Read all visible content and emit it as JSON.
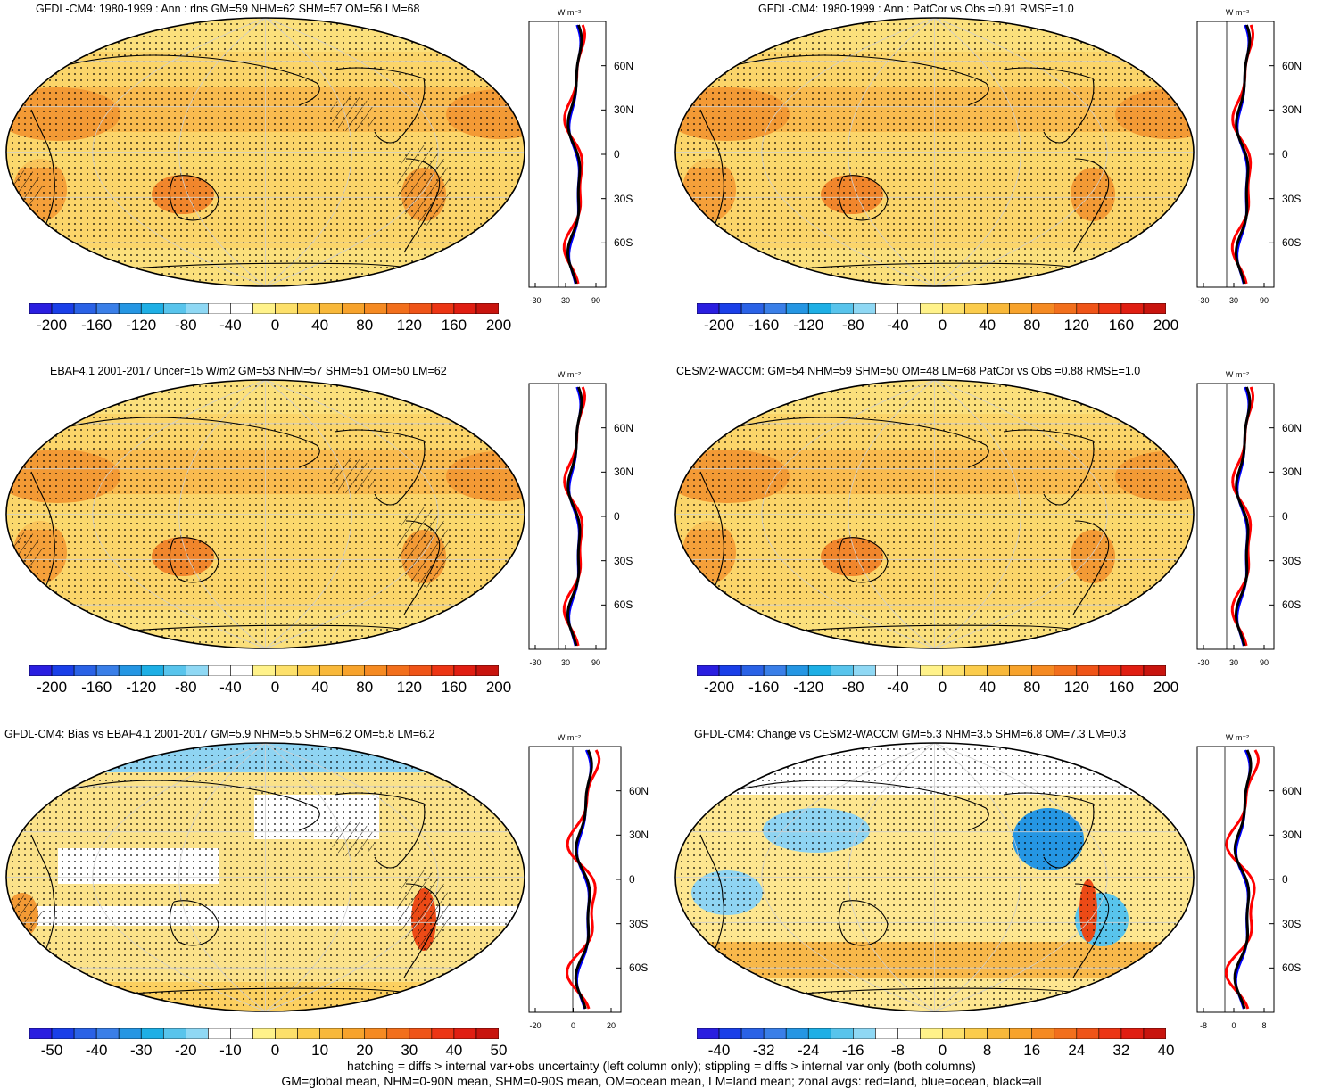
{
  "panels": [
    {
      "id": "gfdl",
      "title": "GFDL-CM4: 1980-1999 : Ann : rlns GM=59 NHM=62 SHM=57 OM=56 LM=68",
      "zonal_unit": "W m⁻²",
      "lat_ticks": [
        "60N",
        "30N",
        "0",
        "30S",
        "60S"
      ],
      "x_ticks": [
        "-30",
        "30",
        "90"
      ],
      "colorbar": {
        "labels": [
          "-200",
          "-160",
          "-120",
          "-80",
          "-40",
          "0",
          "40",
          "80",
          "120",
          "160",
          "200"
        ]
      }
    },
    {
      "id": "gfdl-patcor",
      "title": "GFDL-CM4: 1980-1999 : Ann : PatCor vs Obs =0.91 RMSE=1.0",
      "zonal_unit": "W m⁻²",
      "lat_ticks": [
        "60N",
        "30N",
        "0",
        "30S",
        "60S"
      ],
      "x_ticks": [
        "-30",
        "30",
        "90"
      ],
      "colorbar": {
        "labels": [
          "-200",
          "-160",
          "-120",
          "-80",
          "-40",
          "0",
          "40",
          "80",
          "120",
          "160",
          "200"
        ]
      }
    },
    {
      "id": "ebaf",
      "title": "EBAF4.1 2001-2017 Uncer=15 W/m2 GM=53 NHM=57 SHM=51 OM=50 LM=62",
      "zonal_unit": "W m⁻²",
      "lat_ticks": [
        "60N",
        "30N",
        "0",
        "30S",
        "60S"
      ],
      "x_ticks": [
        "-30",
        "30",
        "90"
      ],
      "colorbar": {
        "labels": [
          "-200",
          "-160",
          "-120",
          "-80",
          "-40",
          "0",
          "40",
          "80",
          "120",
          "160",
          "200"
        ]
      }
    },
    {
      "id": "cesm2",
      "title": "CESM2-WACCM: GM=54 NHM=59 SHM=50 OM=48 LM=68 PatCor vs Obs =0.88 RMSE=1.0",
      "zonal_unit": "W m⁻²",
      "lat_ticks": [
        "60N",
        "30N",
        "0",
        "30S",
        "60S"
      ],
      "x_ticks": [
        "-30",
        "30",
        "90"
      ],
      "colorbar": {
        "labels": [
          "-200",
          "-160",
          "-120",
          "-80",
          "-40",
          "0",
          "40",
          "80",
          "120",
          "160",
          "200"
        ]
      }
    },
    {
      "id": "bias",
      "title": "GFDL-CM4: Bias vs EBAF4.1 2001-2017 GM=5.9 NHM=5.5 SHM=6.2 OM=5.8 LM=6.2",
      "zonal_unit": "W m⁻²",
      "lat_ticks": [
        "60N",
        "30N",
        "0",
        "30S",
        "60S"
      ],
      "x_ticks": [
        "-20",
        "0",
        "20"
      ],
      "colorbar": {
        "labels": [
          "-50",
          "-40",
          "-30",
          "-20",
          "-10",
          "0",
          "10",
          "20",
          "30",
          "40",
          "50"
        ]
      }
    },
    {
      "id": "change",
      "title": "GFDL-CM4: Change vs CESM2-WACCM GM=5.3 NHM=3.5 SHM=6.8 OM=7.3 LM=0.3",
      "zonal_unit": "W m⁻²",
      "lat_ticks": [
        "60N",
        "30N",
        "0",
        "30S",
        "60S"
      ],
      "x_ticks": [
        "-8",
        "0",
        "8"
      ],
      "colorbar": {
        "labels": [
          "-40",
          "-32",
          "-24",
          "-16",
          "-8",
          "0",
          "8",
          "16",
          "24",
          "32",
          "40"
        ]
      }
    }
  ],
  "colors": {
    "colorbar": [
      "#2a1ee0",
      "#1a3fe8",
      "#2a62e6",
      "#3a7fe8",
      "#2596e3",
      "#1eafe5",
      "#58c4ec",
      "#8fd8f4",
      "#ffffff",
      "#ffffff",
      "#fff28a",
      "#fde06a",
      "#fbcc4c",
      "#f8b83a",
      "#f7a32c",
      "#f58a22",
      "#f26f1c",
      "#ef5418",
      "#ec3514",
      "#e01e12",
      "#c8140e"
    ],
    "map_base": "#fbd56a",
    "zonal_land": "#ff0000",
    "zonal_ocean": "#0000ff",
    "zonal_all": "#000000"
  },
  "footer": {
    "line1": "hatching = diffs > internal var+obs uncertainty (left column only); stippling = diffs > internal var only (both columns)",
    "line2": "GM=global mean, NHM=0-90N mean, SHM=0-90S mean, OM=ocean mean, LM=land mean; zonal avgs: red=land, blue=ocean, black=all"
  }
}
